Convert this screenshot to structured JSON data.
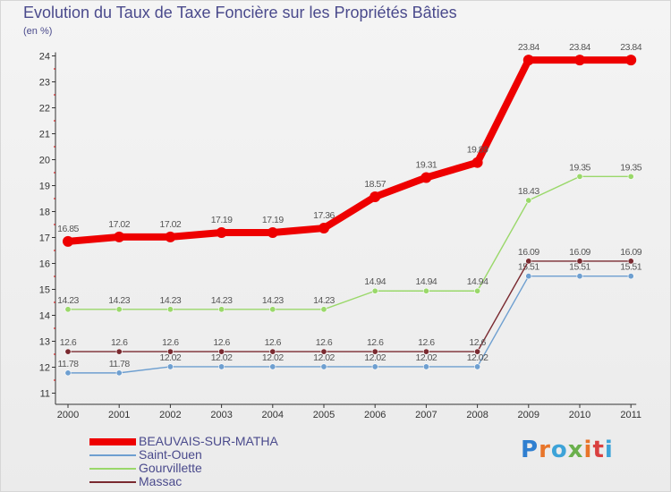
{
  "header": {
    "title": "Evolution du Taux de Taxe Foncière sur les Propriétés Bâties",
    "unit": "(en %)"
  },
  "logo": {
    "text": "Proxiti"
  },
  "chart_data": {
    "type": "line",
    "title": "Evolution du Taux de Taxe Foncière sur les Propriétés Bâties",
    "ylabel": "(en %)",
    "xlabel": "",
    "x": [
      "2000",
      "2001",
      "2002",
      "2003",
      "2004",
      "2005",
      "2006",
      "2007",
      "2008",
      "2009",
      "2010",
      "2011"
    ],
    "ylim": [
      11,
      24
    ],
    "yticks": [
      11,
      12,
      13,
      14,
      15,
      16,
      17,
      18,
      19,
      20,
      21,
      22,
      23,
      24
    ],
    "grid": false,
    "legend_position": "bottom-left",
    "series": [
      {
        "name": "BEAUVAIS-SUR-MATHA",
        "color": "#ee0000",
        "values": [
          16.85,
          17.02,
          17.02,
          17.19,
          17.19,
          17.36,
          18.57,
          19.31,
          19.89,
          23.84,
          23.84,
          23.84
        ],
        "labels": [
          "16.85",
          "17.02",
          "17.02",
          "17.19",
          "17.19",
          "17.36",
          "18.57",
          "19.31",
          "19.89",
          "23.84",
          "23.84",
          "23.84"
        ]
      },
      {
        "name": "Saint-Ouen",
        "color": "#6e9fd0",
        "values": [
          11.78,
          11.78,
          12.02,
          12.02,
          12.02,
          12.02,
          12.02,
          12.02,
          12.02,
          15.51,
          15.51,
          15.51
        ],
        "labels": [
          "11.78",
          "11.78",
          "12.02",
          "12.02",
          "12.02",
          "12.02",
          "12.02",
          "12.02",
          "12.02",
          "15.51",
          "15.51",
          "15.51"
        ]
      },
      {
        "name": "Gourvillette",
        "color": "#9ad86a",
        "values": [
          14.23,
          14.23,
          14.23,
          14.23,
          14.23,
          14.23,
          14.94,
          14.94,
          14.94,
          18.43,
          19.35,
          19.35
        ],
        "labels": [
          "14.23",
          "14.23",
          "14.23",
          "14.23",
          "14.23",
          "14.23",
          "14.94",
          "14.94",
          "14.94",
          "18.43",
          "19.35",
          "19.35"
        ]
      },
      {
        "name": "Massac",
        "color": "#7a2a30",
        "values": [
          12.6,
          12.6,
          12.6,
          12.6,
          12.6,
          12.6,
          12.6,
          12.6,
          12.6,
          16.09,
          16.09,
          16.09
        ],
        "labels": [
          "12.6",
          "12.6",
          "12.6",
          "12.6",
          "12.6",
          "12.6",
          "12.6",
          "12.6",
          "12.6",
          "16.09",
          "16.09",
          "16.09"
        ]
      }
    ]
  }
}
